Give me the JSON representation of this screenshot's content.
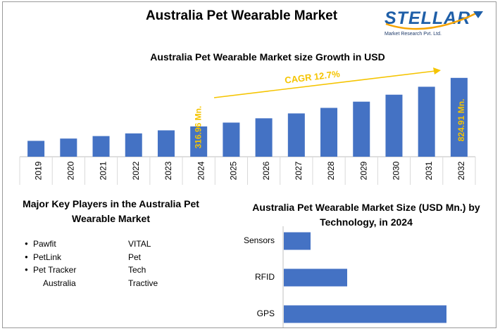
{
  "header": {
    "title": "Australia Pet Wearable Market",
    "logo_text": "STELLAR",
    "logo_subtext": "Market Research Pvt. Ltd.",
    "logo_color": "#1f5fa8"
  },
  "chart_data": [
    {
      "type": "bar",
      "title": "Australia Pet Wearable Market size Growth in USD",
      "categories": [
        "2019",
        "2020",
        "2021",
        "2022",
        "2023",
        "2024",
        "2025",
        "2026",
        "2027",
        "2028",
        "2029",
        "2030",
        "2031",
        "2032"
      ],
      "values": [
        166,
        190,
        216,
        244,
        276,
        316.96,
        357,
        402,
        453,
        511,
        576,
        649,
        732,
        824.91
      ],
      "value_labels": [
        {
          "category": "2024",
          "text": "316.96 Mn."
        },
        {
          "category": "2032",
          "text": "824.91 Mn."
        }
      ],
      "annotation": "CAGR 12.7%",
      "bar_color": "#4472c4",
      "label_color": "#f5c400",
      "annotation_color": "#f5c400"
    },
    {
      "type": "bar",
      "orientation": "horizontal",
      "title": "Australia Pet Wearable Market Size (USD Mn.) by Technology, in 2024",
      "categories": [
        "Sensors",
        "RFID",
        "GPS"
      ],
      "values": [
        38,
        90,
        231
      ],
      "bar_color": "#4472c4"
    }
  ],
  "key_players": {
    "title": "Major Key Players in the Australia Pet Wearable Market",
    "column1": [
      "Pawfit",
      "PetLink",
      "Pet Tracker",
      "Australia"
    ],
    "column2": [
      "VITAL",
      "Pet",
      "Tech",
      "Tractive"
    ]
  }
}
